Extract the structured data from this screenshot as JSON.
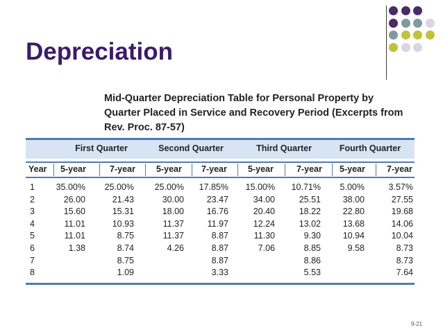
{
  "slide": {
    "title": "Depreciation",
    "page_number": "9-21"
  },
  "decor": {
    "colors": {
      "purple": "#4a2c66",
      "teal": "#7f9b9b",
      "olive": "#c2c23a",
      "lavender": "#d9d5e3"
    },
    "dot_grid": [
      [
        "purple",
        "purple",
        "purple"
      ],
      [
        "purple",
        "teal",
        "teal",
        "lavender"
      ],
      [
        "teal",
        "olive",
        "olive",
        "olive"
      ],
      [
        "olive",
        "lavender",
        "lavender"
      ]
    ]
  },
  "table": {
    "title": "Mid-Quarter Depreciation Table for Personal Property by Quarter Placed in Service and Recovery Period (Excerpts from Rev. Proc. 87-57)",
    "quarters": [
      "First Quarter",
      "Second Quarter",
      "Third Quarter",
      "Fourth Quarter"
    ],
    "year_label": "Year",
    "period_labels": [
      "5-year",
      "7-year",
      "5-year",
      "7-year",
      "5-year",
      "7-year",
      "5-year",
      "7-year"
    ],
    "rows": [
      {
        "year": "1",
        "values": [
          "35.00%",
          "25.00%",
          "25.00%",
          "17.85%",
          "15.00%",
          "10.71%",
          "5.00%",
          "3.57%"
        ]
      },
      {
        "year": "2",
        "values": [
          "26.00",
          "21.43",
          "30.00",
          "23.47",
          "34.00",
          "25.51",
          "38.00",
          "27.55"
        ]
      },
      {
        "year": "3",
        "values": [
          "15.60",
          "15.31",
          "18.00",
          "16.76",
          "20.40",
          "18.22",
          "22.80",
          "19.68"
        ]
      },
      {
        "year": "4",
        "values": [
          "11.01",
          "10.93",
          "11.37",
          "11.97",
          "12.24",
          "13.02",
          "13.68",
          "14.06"
        ]
      },
      {
        "year": "5",
        "values": [
          "11.01",
          "8.75",
          "11.37",
          "8.87",
          "11.30",
          "9.30",
          "10.94",
          "10.04"
        ]
      },
      {
        "year": "6",
        "values": [
          "1.38",
          "8.74",
          "4.26",
          "8.87",
          "7.06",
          "8.85",
          "9.58",
          "8.73"
        ]
      },
      {
        "year": "7",
        "values": [
          "",
          "8.75",
          "",
          "8.87",
          "",
          "8.86",
          "",
          "8.73"
        ]
      },
      {
        "year": "8",
        "values": [
          "",
          "1.09",
          "",
          "3.33",
          "",
          "5.53",
          "",
          "7.64"
        ]
      }
    ]
  }
}
